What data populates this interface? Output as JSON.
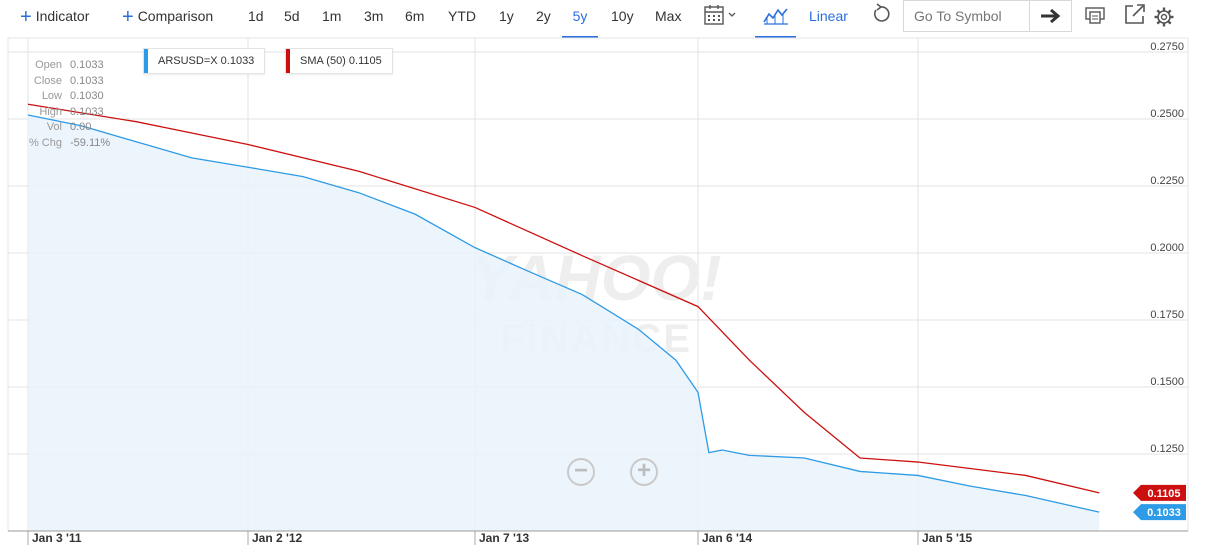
{
  "toolbar": {
    "indicator_label": "Indicator",
    "comparison_label": "Comparison",
    "ranges": [
      "1d",
      "5d",
      "1m",
      "3m",
      "6m",
      "YTD",
      "1y",
      "2y",
      "5y",
      "10y",
      "Max"
    ],
    "active_range": "5y",
    "scale_label": "Linear",
    "search_placeholder": "Go To Symbol",
    "icons": [
      "plus-icon",
      "calendar-icon",
      "chart-type-icon",
      "reset-icon",
      "arrow-right-icon",
      "print-icon",
      "popout-icon",
      "gear-icon"
    ]
  },
  "ohlc": {
    "rows": [
      {
        "label": "Open",
        "value": "0.1033"
      },
      {
        "label": "Close",
        "value": "0.1033"
      },
      {
        "label": "Low",
        "value": "0.1030"
      },
      {
        "label": "High",
        "value": "0.1033"
      },
      {
        "label": "Vol",
        "value": "0.00"
      },
      {
        "label": "% Chg",
        "value": "-59.11%"
      }
    ]
  },
  "legend": {
    "series1": "ARSUSD=X 0.1033",
    "series2": "SMA (50) 0.1105"
  },
  "watermark": {
    "line1": "YAHOO!",
    "line2": "FINANCE"
  },
  "colors": {
    "series1": "#2d9be5",
    "series2": "#cc1010",
    "accent": "#2a6fdb",
    "area": "#eaf3fb"
  },
  "chart_data": {
    "type": "line",
    "x_tick_labels": [
      "Jan 3 '11",
      "Jan 2 '12",
      "Jan 7 '13",
      "Jan 6 '14",
      "Jan 5 '15"
    ],
    "y_tick_labels": [
      "0.2750",
      "0.2500",
      "0.2250",
      "0.2000",
      "0.1750",
      "0.1500",
      "0.1250"
    ],
    "ylim": [
      0.1,
      0.28
    ],
    "grid": true,
    "scale": "linear",
    "series": [
      {
        "name": "ARSUSD=X",
        "last_value_label": "0.1033",
        "x": [
          "2011-01-03",
          "2011-04-01",
          "2011-07-01",
          "2011-10-01",
          "2012-01-02",
          "2012-04-01",
          "2012-07-01",
          "2012-10-01",
          "2013-01-07",
          "2013-04-01",
          "2013-07-01",
          "2013-10-01",
          "2013-12-01",
          "2014-01-06",
          "2014-01-24",
          "2014-02-15",
          "2014-04-01",
          "2014-07-01",
          "2014-10-01",
          "2015-01-05",
          "2015-04-01",
          "2015-07-01",
          "2015-10-30"
        ],
        "values": [
          0.2515,
          0.2475,
          0.2415,
          0.2355,
          0.232,
          0.2285,
          0.2225,
          0.2145,
          0.202,
          0.1935,
          0.1845,
          0.1715,
          0.16,
          0.148,
          0.1255,
          0.1265,
          0.1245,
          0.1235,
          0.1185,
          0.117,
          0.113,
          0.1095,
          0.1033
        ]
      },
      {
        "name": "SMA (50)",
        "last_value_label": "0.1105",
        "x": [
          "2011-01-03",
          "2011-07-01",
          "2012-01-02",
          "2012-07-01",
          "2013-01-07",
          "2013-07-01",
          "2014-01-06",
          "2014-04-01",
          "2014-07-01",
          "2014-10-01",
          "2015-01-05",
          "2015-07-01",
          "2015-10-30"
        ],
        "values": [
          0.2555,
          0.249,
          0.2405,
          0.2305,
          0.217,
          0.199,
          0.18,
          0.16,
          0.1405,
          0.1235,
          0.122,
          0.117,
          0.1105
        ]
      }
    ]
  }
}
